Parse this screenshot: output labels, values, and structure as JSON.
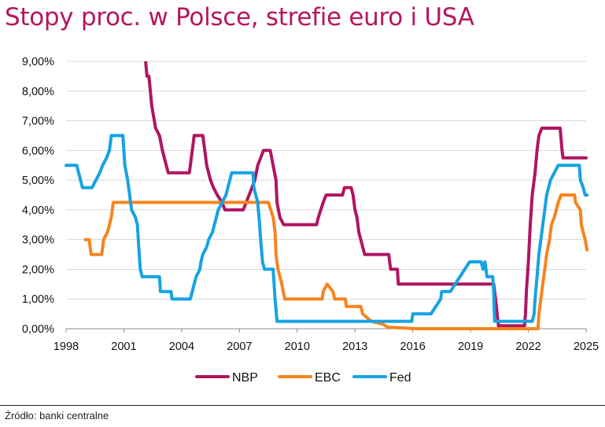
{
  "title": "Stopy proc. w Polsce, strefie euro i USA",
  "source": "Źródło: banki centralne",
  "chart_data": {
    "type": "line",
    "title": "Stopy proc. w Polsce, strefie euro i USA",
    "xlabel": "",
    "ylabel": "",
    "xlim": [
      1998,
      2025
    ],
    "ylim": [
      0,
      9
    ],
    "x_ticks": [
      "1998",
      "2001",
      "2004",
      "2007",
      "2010",
      "2013",
      "2016",
      "2019",
      "2022",
      "2025"
    ],
    "y_ticks": [
      "0,00%",
      "1,00%",
      "2,00%",
      "3,00%",
      "4,00%",
      "5,00%",
      "6,00%",
      "7,00%",
      "8,00%",
      "9,00%"
    ],
    "grid": true,
    "legend_position": "bottom",
    "series": [
      {
        "name": "NBP",
        "color": "#b01561",
        "points": [
          [
            2002.13,
            9.0
          ],
          [
            2002.2,
            8.5
          ],
          [
            2002.3,
            8.5
          ],
          [
            2002.45,
            7.5
          ],
          [
            2002.65,
            6.75
          ],
          [
            2002.85,
            6.5
          ],
          [
            2003.0,
            6.0
          ],
          [
            2003.3,
            5.25
          ],
          [
            2004.4,
            5.25
          ],
          [
            2004.55,
            6.0
          ],
          [
            2004.65,
            6.5
          ],
          [
            2005.1,
            6.5
          ],
          [
            2005.2,
            6.0
          ],
          [
            2005.3,
            5.5
          ],
          [
            2005.5,
            5.0
          ],
          [
            2005.65,
            4.75
          ],
          [
            2005.85,
            4.5
          ],
          [
            2006.1,
            4.25
          ],
          [
            2006.25,
            4.0
          ],
          [
            2007.2,
            4.0
          ],
          [
            2007.35,
            4.25
          ],
          [
            2007.5,
            4.5
          ],
          [
            2007.8,
            5.0
          ],
          [
            2007.95,
            5.5
          ],
          [
            2008.1,
            5.75
          ],
          [
            2008.25,
            6.0
          ],
          [
            2008.6,
            6.0
          ],
          [
            2008.9,
            5.0
          ],
          [
            2008.95,
            4.25
          ],
          [
            2009.1,
            3.75
          ],
          [
            2009.3,
            3.5
          ],
          [
            2010.0,
            3.5
          ],
          [
            2011.0,
            3.5
          ],
          [
            2011.1,
            3.75
          ],
          [
            2011.35,
            4.25
          ],
          [
            2011.5,
            4.5
          ],
          [
            2012.35,
            4.5
          ],
          [
            2012.45,
            4.75
          ],
          [
            2012.8,
            4.75
          ],
          [
            2012.9,
            4.5
          ],
          [
            2013.0,
            4.0
          ],
          [
            2013.1,
            3.75
          ],
          [
            2013.2,
            3.25
          ],
          [
            2013.3,
            3.0
          ],
          [
            2013.5,
            2.5
          ],
          [
            2014.75,
            2.5
          ],
          [
            2014.85,
            2.0
          ],
          [
            2015.2,
            2.0
          ],
          [
            2015.25,
            1.5
          ],
          [
            2020.2,
            1.5
          ],
          [
            2020.3,
            1.0
          ],
          [
            2020.38,
            0.5
          ],
          [
            2020.45,
            0.1
          ],
          [
            2021.8,
            0.1
          ],
          [
            2021.85,
            0.5
          ],
          [
            2021.9,
            1.25
          ],
          [
            2022.0,
            2.25
          ],
          [
            2022.1,
            3.5
          ],
          [
            2022.2,
            4.5
          ],
          [
            2022.35,
            5.25
          ],
          [
            2022.45,
            6.0
          ],
          [
            2022.55,
            6.5
          ],
          [
            2022.7,
            6.75
          ],
          [
            2023.65,
            6.75
          ],
          [
            2023.75,
            6.0
          ],
          [
            2023.8,
            5.75
          ],
          [
            2025.0,
            5.75
          ]
        ]
      },
      {
        "name": "EBC",
        "color": "#f6841f",
        "points": [
          [
            1999.0,
            3.0
          ],
          [
            1999.2,
            3.0
          ],
          [
            1999.3,
            2.5
          ],
          [
            1999.85,
            2.5
          ],
          [
            1999.95,
            3.0
          ],
          [
            2000.15,
            3.25
          ],
          [
            2000.25,
            3.5
          ],
          [
            2000.35,
            3.75
          ],
          [
            2000.45,
            4.25
          ],
          [
            2000.75,
            4.25
          ],
          [
            2001.35,
            4.25
          ],
          [
            2008.5,
            4.25
          ],
          [
            2008.75,
            3.75
          ],
          [
            2008.85,
            3.25
          ],
          [
            2008.9,
            2.5
          ],
          [
            2009.0,
            2.0
          ],
          [
            2009.2,
            1.5
          ],
          [
            2009.35,
            1.0
          ],
          [
            2011.3,
            1.0
          ],
          [
            2011.35,
            1.25
          ],
          [
            2011.55,
            1.5
          ],
          [
            2011.85,
            1.25
          ],
          [
            2011.95,
            1.0
          ],
          [
            2012.5,
            1.0
          ],
          [
            2012.55,
            0.75
          ],
          [
            2013.3,
            0.75
          ],
          [
            2013.4,
            0.5
          ],
          [
            2013.85,
            0.25
          ],
          [
            2014.45,
            0.15
          ],
          [
            2014.7,
            0.05
          ],
          [
            2016.2,
            0.0
          ],
          [
            2022.5,
            0.0
          ],
          [
            2022.55,
            0.5
          ],
          [
            2022.7,
            1.25
          ],
          [
            2022.85,
            2.0
          ],
          [
            2022.95,
            2.5
          ],
          [
            2023.1,
            3.0
          ],
          [
            2023.2,
            3.5
          ],
          [
            2023.35,
            3.75
          ],
          [
            2023.45,
            4.0
          ],
          [
            2023.55,
            4.25
          ],
          [
            2023.7,
            4.5
          ],
          [
            2024.4,
            4.5
          ],
          [
            2024.45,
            4.25
          ],
          [
            2024.7,
            4.0
          ],
          [
            2024.75,
            3.5
          ],
          [
            2024.85,
            3.25
          ],
          [
            2024.95,
            3.0
          ],
          [
            2025.05,
            2.65
          ]
        ]
      },
      {
        "name": "Fed",
        "color": "#16a3e3",
        "points": [
          [
            1998.0,
            5.5
          ],
          [
            1998.55,
            5.5
          ],
          [
            1998.75,
            5.0
          ],
          [
            1998.85,
            4.75
          ],
          [
            1999.35,
            4.75
          ],
          [
            1999.55,
            5.0
          ],
          [
            1999.75,
            5.25
          ],
          [
            1999.9,
            5.5
          ],
          [
            2000.1,
            5.75
          ],
          [
            2000.25,
            6.0
          ],
          [
            2000.35,
            6.5
          ],
          [
            2000.95,
            6.5
          ],
          [
            2001.0,
            6.0
          ],
          [
            2001.05,
            5.5
          ],
          [
            2001.2,
            5.0
          ],
          [
            2001.3,
            4.5
          ],
          [
            2001.4,
            4.0
          ],
          [
            2001.6,
            3.75
          ],
          [
            2001.7,
            3.5
          ],
          [
            2001.75,
            3.0
          ],
          [
            2001.8,
            2.5
          ],
          [
            2001.85,
            2.0
          ],
          [
            2001.95,
            1.75
          ],
          [
            2002.85,
            1.75
          ],
          [
            2002.9,
            1.25
          ],
          [
            2003.45,
            1.25
          ],
          [
            2003.5,
            1.0
          ],
          [
            2004.45,
            1.0
          ],
          [
            2004.55,
            1.25
          ],
          [
            2004.65,
            1.5
          ],
          [
            2004.75,
            1.75
          ],
          [
            2004.95,
            2.0
          ],
          [
            2005.0,
            2.25
          ],
          [
            2005.1,
            2.5
          ],
          [
            2005.3,
            2.75
          ],
          [
            2005.4,
            3.0
          ],
          [
            2005.6,
            3.25
          ],
          [
            2005.7,
            3.5
          ],
          [
            2005.8,
            3.75
          ],
          [
            2005.9,
            4.0
          ],
          [
            2006.1,
            4.25
          ],
          [
            2006.3,
            4.5
          ],
          [
            2006.4,
            4.75
          ],
          [
            2006.5,
            5.0
          ],
          [
            2006.6,
            5.25
          ],
          [
            2007.7,
            5.25
          ],
          [
            2007.75,
            4.75
          ],
          [
            2007.85,
            4.5
          ],
          [
            2007.95,
            4.25
          ],
          [
            2008.05,
            3.5
          ],
          [
            2008.1,
            3.0
          ],
          [
            2008.2,
            2.25
          ],
          [
            2008.3,
            2.0
          ],
          [
            2008.75,
            2.0
          ],
          [
            2008.8,
            1.5
          ],
          [
            2008.85,
            1.0
          ],
          [
            2008.95,
            0.25
          ],
          [
            2015.95,
            0.25
          ],
          [
            2016.0,
            0.5
          ],
          [
            2016.95,
            0.5
          ],
          [
            2017.2,
            0.75
          ],
          [
            2017.45,
            1.0
          ],
          [
            2017.5,
            1.25
          ],
          [
            2017.95,
            1.25
          ],
          [
            2018.2,
            1.5
          ],
          [
            2018.45,
            1.75
          ],
          [
            2018.7,
            2.0
          ],
          [
            2018.95,
            2.25
          ],
          [
            2019.55,
            2.25
          ],
          [
            2019.65,
            2.0
          ],
          [
            2019.75,
            2.25
          ],
          [
            2019.85,
            1.75
          ],
          [
            2020.15,
            1.75
          ],
          [
            2020.2,
            1.25
          ],
          [
            2020.25,
            0.25
          ],
          [
            2022.2,
            0.25
          ],
          [
            2022.3,
            0.5
          ],
          [
            2022.35,
            1.0
          ],
          [
            2022.45,
            1.75
          ],
          [
            2022.55,
            2.5
          ],
          [
            2022.7,
            3.25
          ],
          [
            2022.85,
            4.0
          ],
          [
            2022.95,
            4.5
          ],
          [
            2023.05,
            4.75
          ],
          [
            2023.15,
            5.0
          ],
          [
            2023.35,
            5.25
          ],
          [
            2023.55,
            5.5
          ],
          [
            2024.65,
            5.5
          ],
          [
            2024.7,
            5.0
          ],
          [
            2024.85,
            4.75
          ],
          [
            2024.95,
            4.5
          ],
          [
            2025.05,
            4.5
          ]
        ]
      }
    ]
  }
}
